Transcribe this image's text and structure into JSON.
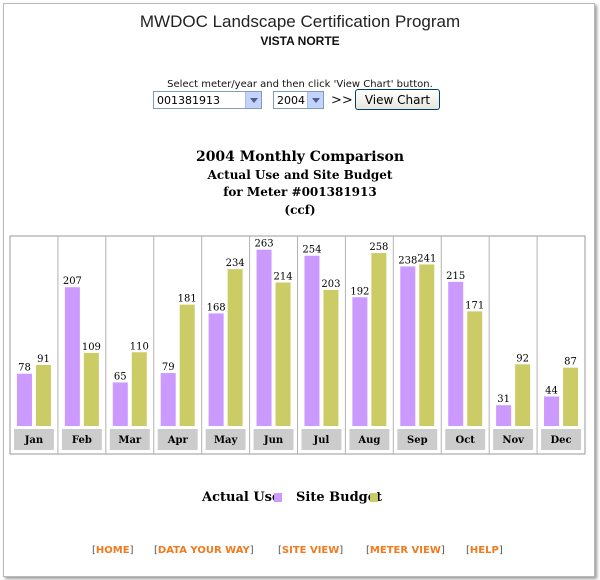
{
  "header": {
    "title": "MWDOC Landscape Certification Program",
    "subtitle": "VISTA NORTE"
  },
  "controls": {
    "instruction": "Select meter/year and then click 'View Chart' button.",
    "meter_value": "001381913",
    "year_value": "2004",
    "separator": ">>",
    "view_button_label": "View Chart"
  },
  "chart_title": {
    "line1": "2004 Monthly Comparison",
    "line2": "Actual Use and Site Budget",
    "line3": "for Meter #001381913",
    "line4": "(ccf)"
  },
  "colors": {
    "actual_use": "#cc99ff",
    "site_budget": "#cccc66",
    "month_label_bg": "#cccccc",
    "nav_link": "#f07a1d"
  },
  "chart_data": {
    "type": "bar",
    "categories": [
      "Jan",
      "Feb",
      "Mar",
      "Apr",
      "May",
      "Jun",
      "Jul",
      "Aug",
      "Sep",
      "Oct",
      "Nov",
      "Dec"
    ],
    "series": [
      {
        "name": "Actual Use",
        "values": [
          78,
          207,
          65,
          79,
          168,
          263,
          254,
          192,
          238,
          215,
          31,
          44
        ]
      },
      {
        "name": "Site Budget",
        "values": [
          91,
          109,
          110,
          181,
          234,
          214,
          203,
          258,
          241,
          171,
          92,
          87
        ]
      }
    ],
    "legend": [
      "Actual Use",
      "Site Budget"
    ]
  },
  "nav": {
    "home": "HOME",
    "data_your_way": "DATA YOUR WAY",
    "site_view": "SITE VIEW",
    "meter_view": "METER VIEW",
    "help": "HELP"
  }
}
